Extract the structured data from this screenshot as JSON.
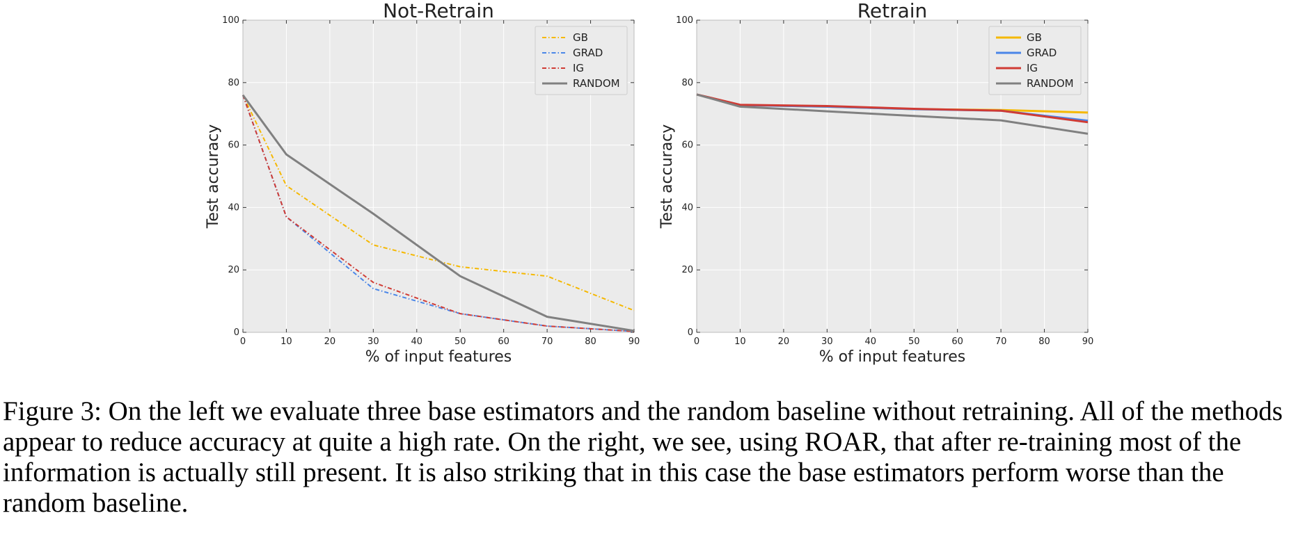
{
  "chart_data": [
    {
      "type": "line",
      "title": "Not-Retrain",
      "xlabel": "% of input features",
      "ylabel": "Test accuracy",
      "xlim": [
        0,
        90
      ],
      "ylim": [
        0,
        100
      ],
      "xticks": [
        0,
        10,
        20,
        30,
        40,
        50,
        60,
        70,
        80,
        90
      ],
      "yticks": [
        0,
        20,
        40,
        60,
        80,
        100
      ],
      "grid": true,
      "legend_position": "top-right",
      "x": [
        0,
        10,
        30,
        50,
        70,
        90
      ],
      "series": [
        {
          "name": "GB",
          "values": [
            76,
            47,
            28,
            21,
            18,
            7
          ],
          "color": "#f5b800",
          "style": "dashdot"
        },
        {
          "name": "GRAD",
          "values": [
            76,
            37,
            14,
            6,
            2,
            0.3
          ],
          "color": "#4a86e8",
          "style": "dashdot"
        },
        {
          "name": "IG",
          "values": [
            76,
            37,
            16,
            6,
            2,
            0.3
          ],
          "color": "#d03b34",
          "style": "dashdot"
        },
        {
          "name": "RANDOM",
          "values": [
            76,
            57,
            38,
            18,
            5,
            0.5
          ],
          "color": "#808080",
          "style": "solid"
        }
      ]
    },
    {
      "type": "line",
      "title": "Retrain",
      "xlabel": "% of input features",
      "ylabel": "Test accuracy",
      "xlim": [
        0,
        90
      ],
      "ylim": [
        0,
        100
      ],
      "xticks": [
        0,
        10,
        20,
        30,
        40,
        50,
        60,
        70,
        80,
        90
      ],
      "yticks": [
        0,
        20,
        40,
        60,
        80,
        100
      ],
      "grid": true,
      "legend_position": "top-right",
      "x": [
        0,
        10,
        30,
        50,
        70,
        90
      ],
      "series": [
        {
          "name": "GB",
          "values": [
            76.2,
            72.8,
            72.3,
            71.5,
            71.2,
            70.4
          ],
          "color": "#f5b800",
          "style": "solid"
        },
        {
          "name": "GRAD",
          "values": [
            76.2,
            72.8,
            72.3,
            71.5,
            71.0,
            67.8
          ],
          "color": "#4a86e8",
          "style": "solid"
        },
        {
          "name": "IG",
          "values": [
            76.2,
            72.9,
            72.5,
            71.6,
            71.0,
            67.3
          ],
          "color": "#d03b34",
          "style": "solid"
        },
        {
          "name": "RANDOM",
          "values": [
            76.2,
            72.3,
            70.8,
            69.3,
            67.9,
            63.6
          ],
          "color": "#808080",
          "style": "solid"
        }
      ]
    }
  ],
  "caption": "Figure 3: On the left we evaluate three base estimators and the random baseline without retraining. All of the methods appear to reduce accuracy at quite a high rate. On the right, we see, using ROAR, that after re-training most of the information is actually still present. It is also striking that in this case the base estimators perform worse than the random baseline."
}
